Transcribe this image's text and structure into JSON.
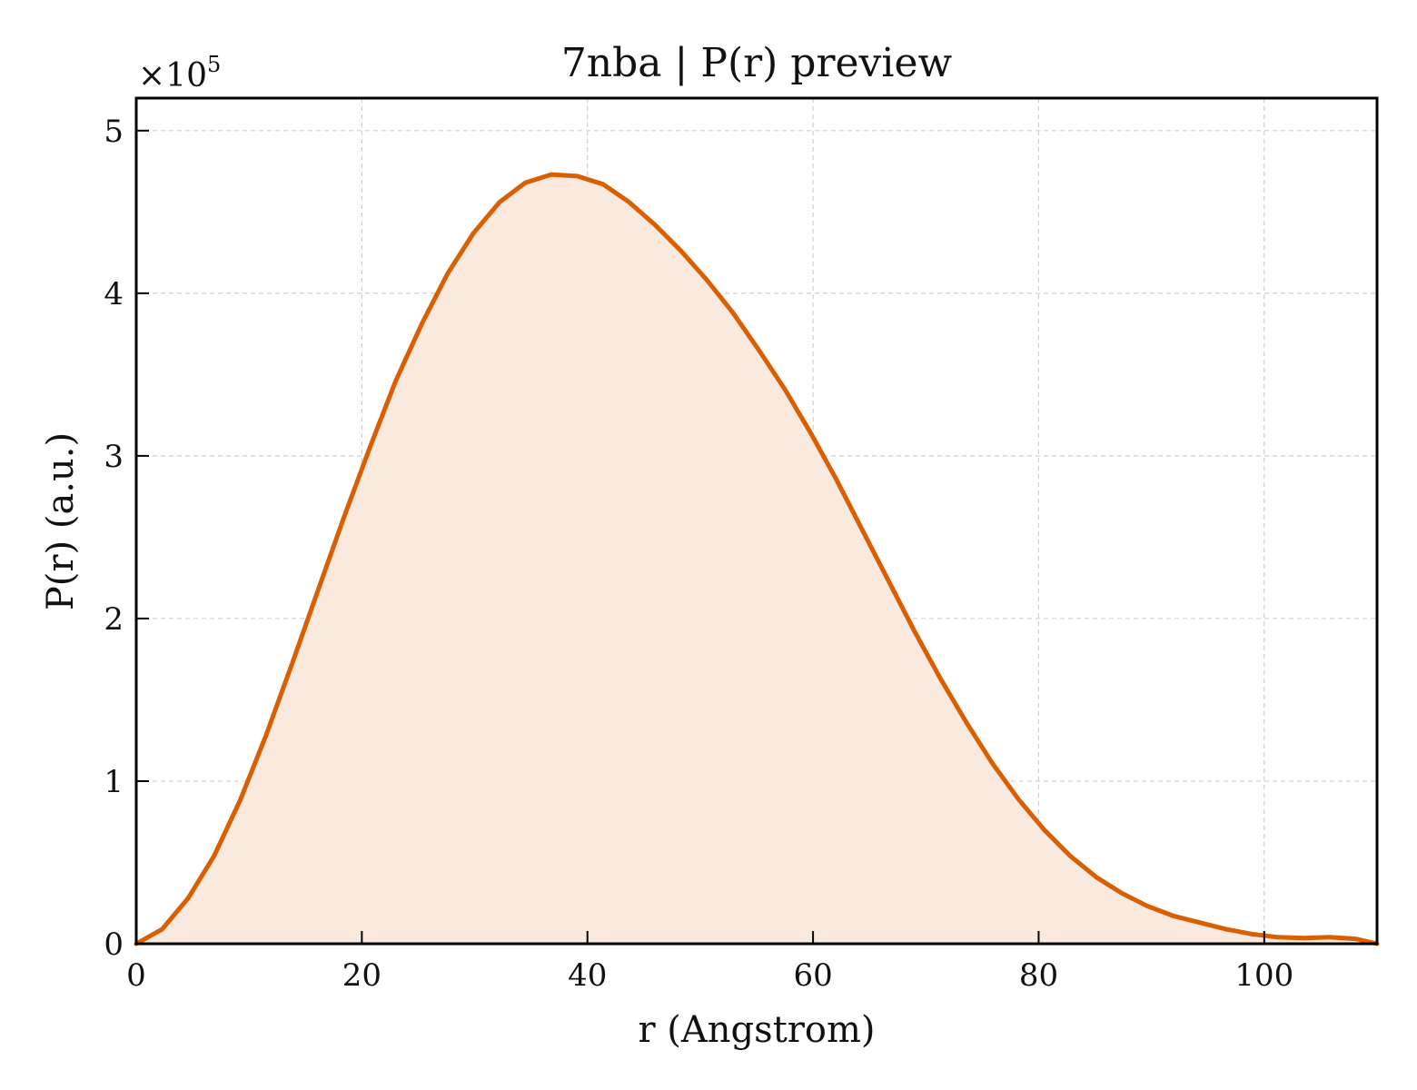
{
  "chart_data": {
    "type": "area",
    "title": "7nba | P(r) preview",
    "xlabel": "r (Angstrom)",
    "ylabel": "P(r) (a.u.)",
    "y_multiplier_base": "×10",
    "y_multiplier_exponent": "5",
    "xlim": [
      0,
      110
    ],
    "ylim": [
      0,
      5.2
    ],
    "y_scale": 100000,
    "xticks": [
      0,
      20,
      40,
      60,
      80,
      100
    ],
    "yticks": [
      0,
      1,
      2,
      3,
      4,
      5
    ],
    "grid": true,
    "line_color": "#d95f02",
    "fill_color": "#f9e9de",
    "series": [
      {
        "x": [
          0,
          2.3,
          4.6,
          6.9,
          9.2,
          11.5,
          13.8,
          16.1,
          18.4,
          20.7,
          23.0,
          25.3,
          27.6,
          29.9,
          32.2,
          34.5,
          36.8,
          39.1,
          41.4,
          43.7,
          46.0,
          48.3,
          50.6,
          52.9,
          55.2,
          57.5,
          59.8,
          62.1,
          64.4,
          66.7,
          69.0,
          71.3,
          73.6,
          75.9,
          78.2,
          80.5,
          82.8,
          85.1,
          87.4,
          89.7,
          92.0,
          94.3,
          96.6,
          98.9,
          101.2,
          103.5,
          105.8,
          108.1,
          110.0
        ],
        "values": [
          0.0,
          0.09,
          0.28,
          0.54,
          0.88,
          1.28,
          1.72,
          2.17,
          2.62,
          3.05,
          3.46,
          3.81,
          4.12,
          4.37,
          4.56,
          4.68,
          4.73,
          4.72,
          4.67,
          4.56,
          4.42,
          4.26,
          4.08,
          3.88,
          3.65,
          3.41,
          3.14,
          2.85,
          2.54,
          2.23,
          1.92,
          1.63,
          1.36,
          1.11,
          0.89,
          0.7,
          0.54,
          0.41,
          0.31,
          0.23,
          0.17,
          0.13,
          0.09,
          0.06,
          0.04,
          0.035,
          0.04,
          0.03,
          0.0
        ]
      }
    ]
  }
}
